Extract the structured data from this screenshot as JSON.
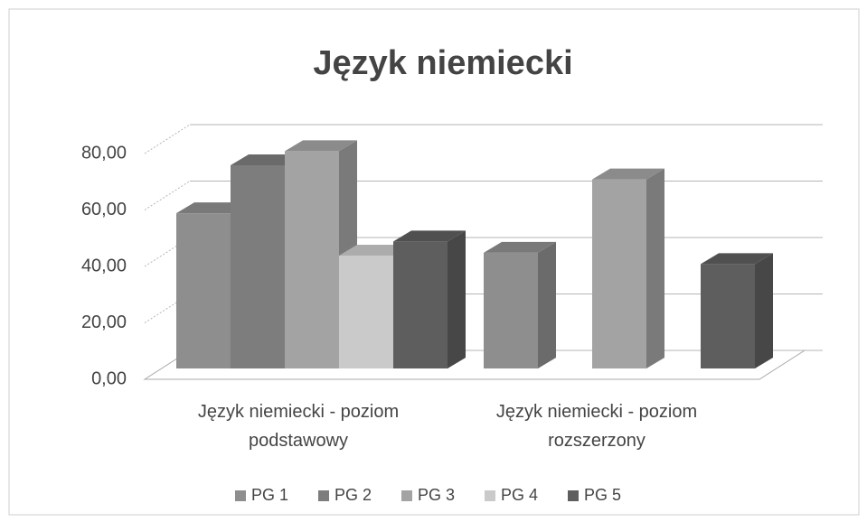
{
  "chart_data": {
    "type": "bar3d",
    "title": "Język niemiecki",
    "categories": [
      "Język niemiecki - poziom podstawowy",
      "Język niemiecki - poziom rozszerzony"
    ],
    "series": [
      {
        "name": "PG 1",
        "color": "#8e8e8e",
        "values": [
          55,
          41
        ]
      },
      {
        "name": "PG 2",
        "color": "#7d7d7d",
        "values": [
          72,
          null
        ]
      },
      {
        "name": "PG 3",
        "color": "#a3a3a3",
        "values": [
          77,
          67
        ]
      },
      {
        "name": "PG 4",
        "color": "#cacaca",
        "values": [
          40,
          null
        ]
      },
      {
        "name": "PG 5",
        "color": "#5e5e5e",
        "values": [
          45,
          37
        ]
      }
    ],
    "ylim": [
      0,
      80
    ],
    "yticks": [
      {
        "value": 0,
        "label": "0,00"
      },
      {
        "value": 20,
        "label": "20,00"
      },
      {
        "value": 40,
        "label": "40,00"
      },
      {
        "value": 60,
        "label": "60,00"
      },
      {
        "value": 80,
        "label": "80,00"
      }
    ],
    "grid": true,
    "legend": "bottom"
  }
}
